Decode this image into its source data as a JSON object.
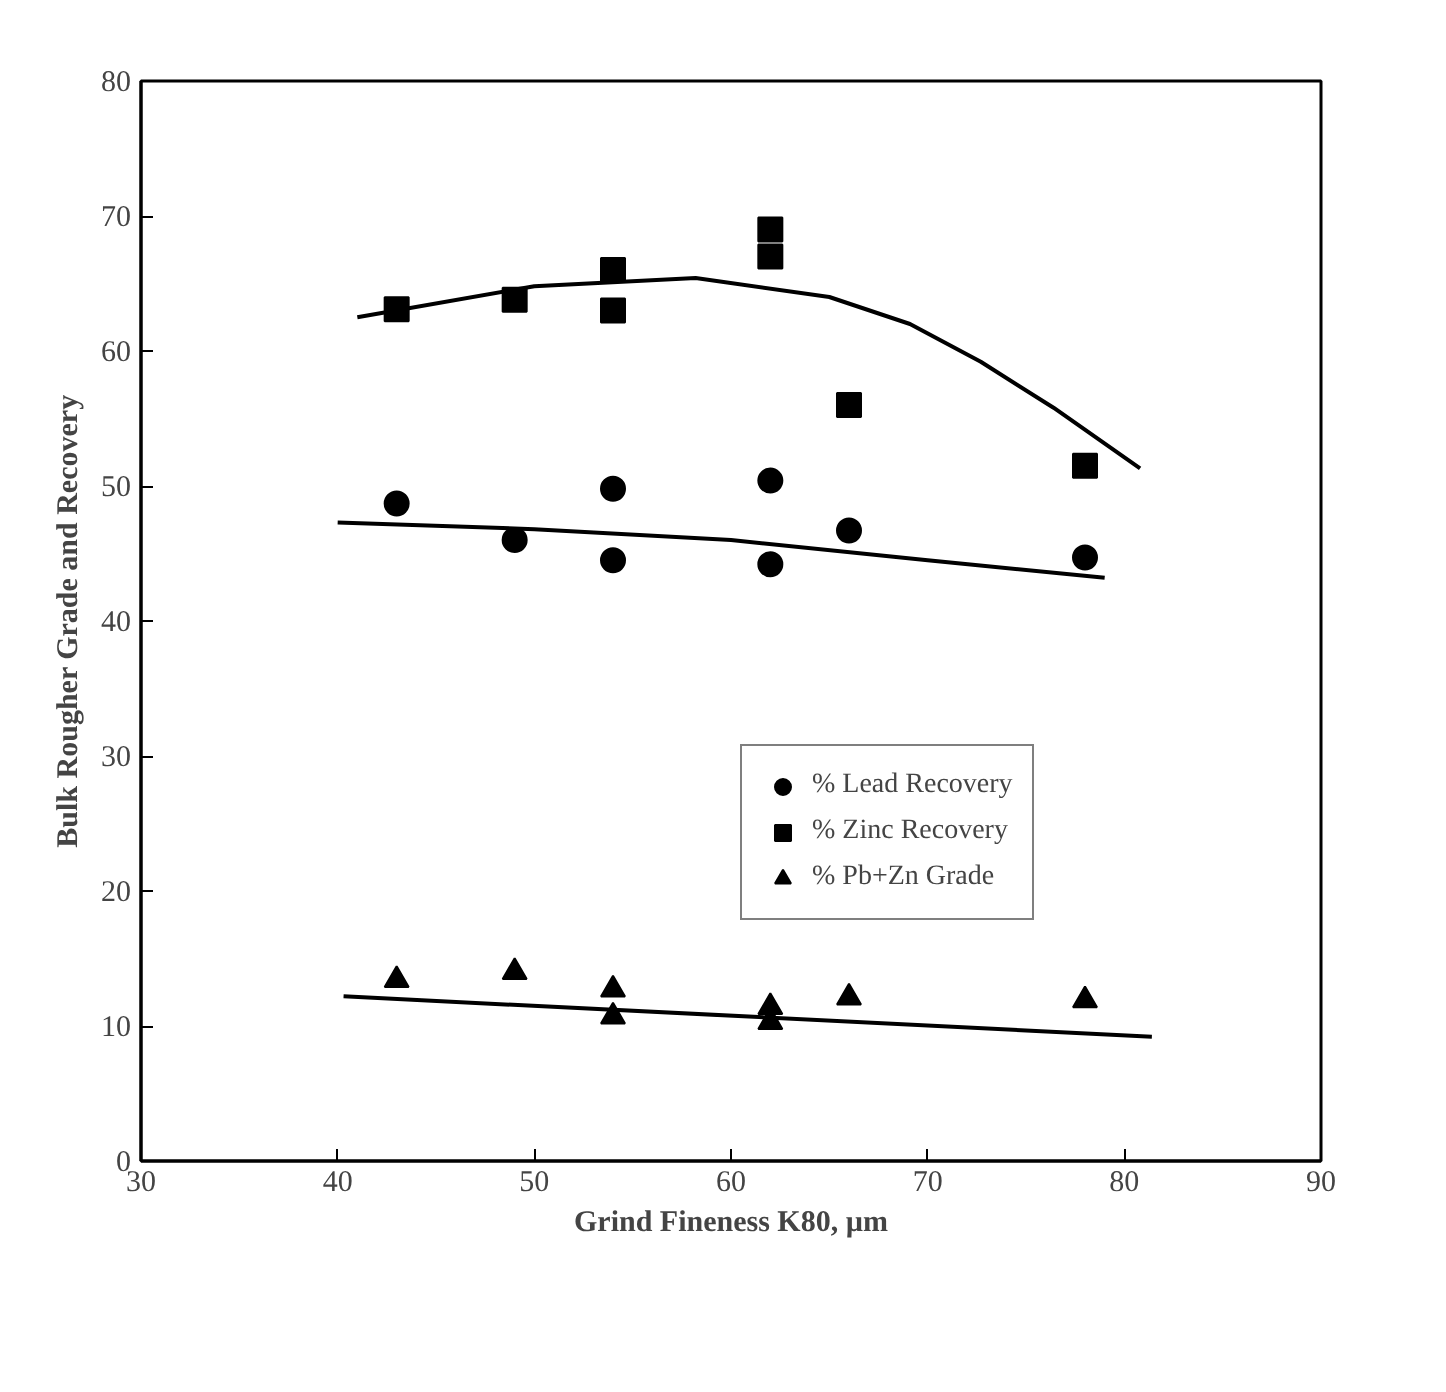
{
  "chart_data": {
    "type": "scatter",
    "xlabel": "Grind Fineness K80, µm",
    "ylabel": "Bulk Rougher Grade and Recovery",
    "xlim": [
      30,
      90
    ],
    "xticks": [
      30,
      40,
      50,
      60,
      70,
      80,
      90
    ],
    "ylim": [
      0,
      80
    ],
    "yticks": [
      0,
      10,
      20,
      30,
      40,
      50,
      60,
      70,
      80
    ],
    "grid": false,
    "legend": "right",
    "series": [
      {
        "name": "% Lead Recovery",
        "color": "#000000",
        "marker": "circle",
        "x": [
          43,
          49,
          54,
          54,
          62,
          62,
          66,
          78
        ],
        "values": [
          48.7,
          46.0,
          49.8,
          44.5,
          50.4,
          44.2,
          46.7,
          44.7
        ]
      },
      {
        "name": "% Zinc Recovery",
        "color": "#000000",
        "marker": "square",
        "x": [
          43,
          49,
          54,
          54,
          62,
          62,
          66,
          78
        ],
        "values": [
          63.1,
          63.8,
          66,
          63,
          69,
          67,
          56.0,
          51.5
        ]
      },
      {
        "name": "% Pb+Zn Grade",
        "color": "#000000",
        "marker": "triangle",
        "x": [
          43,
          49,
          54,
          54,
          62,
          62,
          66,
          78
        ],
        "values": [
          13.4,
          14.0,
          12.7,
          10.7,
          11.4,
          10.3,
          12.1,
          11.9
        ]
      },
      {
        "type": "line",
        "color": "#000000",
        "line_style": "solid",
        "x": [
          41,
          50,
          58.2,
          65,
          69.1,
          72.7,
          76.4,
          80.8
        ],
        "values": [
          62.5,
          64.8,
          65.4,
          64.0,
          62.0,
          59.2,
          55.8,
          51.3
        ]
      },
      {
        "type": "line",
        "color": "#000000",
        "line_style": "solid",
        "x": [
          40,
          50,
          60,
          70,
          79
        ],
        "values": [
          47.3,
          46.8,
          46.0,
          44.5,
          43.2
        ]
      },
      {
        "type": "line",
        "color": "#000000",
        "line_style": "solid",
        "x": [
          40.3,
          81.4
        ],
        "values": [
          12.2,
          9.2
        ]
      }
    ]
  }
}
